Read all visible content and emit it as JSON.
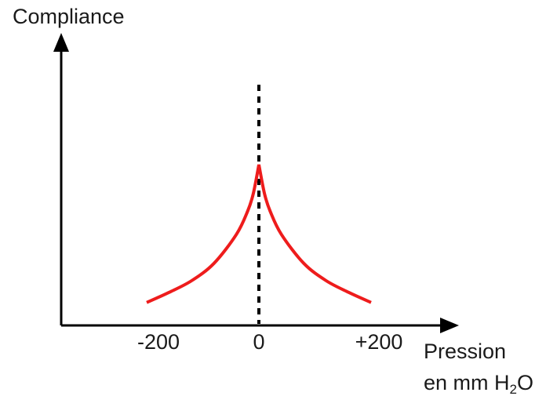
{
  "chart_data": {
    "type": "line",
    "ylabel": "Compliance",
    "xlabel_line1": "Pression",
    "xlabel_line2_prefix": "en mm H",
    "xlabel_line2_sub": "2",
    "xlabel_line2_suffix": "O",
    "x_ticks": [
      {
        "value": -200,
        "label": "-200"
      },
      {
        "value": 0,
        "label": "0"
      },
      {
        "value": 200,
        "label": "+200"
      }
    ],
    "xlim": [
      -200,
      200
    ],
    "y_scale": "relative, no tick values printed",
    "peak_marker": {
      "x": 0,
      "style": "dashed",
      "color": "#000000"
    },
    "series": [
      {
        "color": "#ee1c1c",
        "x": [
          -200,
          -160,
          -120,
          -80,
          -40,
          -20,
          -10,
          0,
          10,
          20,
          40,
          80,
          120,
          160,
          200
        ],
        "y": [
          0.05,
          0.12,
          0.2,
          0.32,
          0.52,
          0.68,
          0.8,
          1.0,
          0.8,
          0.68,
          0.52,
          0.32,
          0.2,
          0.12,
          0.05
        ]
      }
    ]
  },
  "colors": {
    "axis": "#000000",
    "curve": "#ee1c1c",
    "marker": "#000000"
  }
}
